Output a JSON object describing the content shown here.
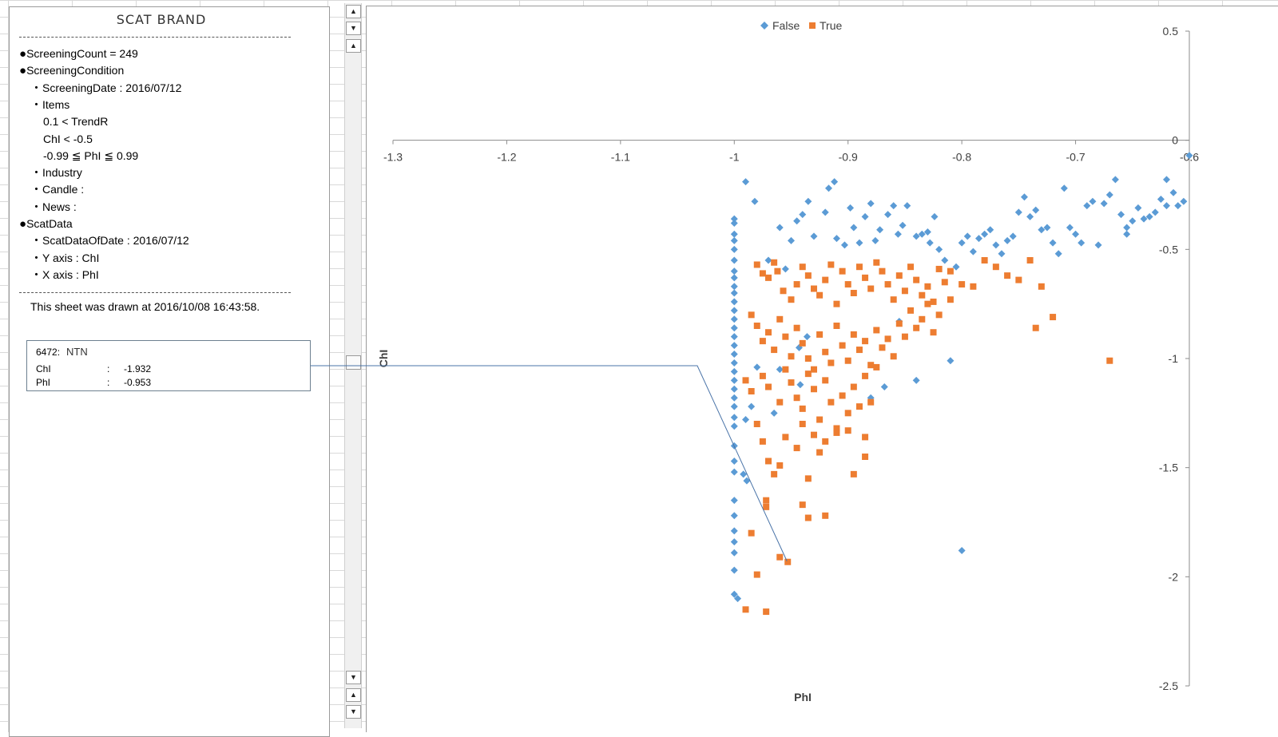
{
  "panel": {
    "title": "SCAT BRAND",
    "lines": [
      {
        "text": "ScreeningCount = 249",
        "bullet": "●"
      },
      {
        "text": "ScreeningCondition",
        "bullet": "●"
      },
      {
        "text": "ScreeningDate : 2016/07/12",
        "bullet": "・"
      },
      {
        "text": "Items",
        "bullet": "・"
      },
      {
        "text": "0.1 < TrendR",
        "bullet": ""
      },
      {
        "text": "ChI < -0.5",
        "bullet": ""
      },
      {
        "text": "-0.99 ≦ PhI ≦ 0.99",
        "bullet": ""
      },
      {
        "text": "Industry",
        "bullet": "・"
      },
      {
        "text": "Candle :",
        "bullet": "・"
      },
      {
        "text": "News :",
        "bullet": "・"
      },
      {
        "text": "ScatData",
        "bullet": "●"
      },
      {
        "text": "ScatDataOfDate : 2016/07/12",
        "bullet": "・"
      },
      {
        "text": "Y axis : ChI",
        "bullet": "・"
      },
      {
        "text": "X axis : PhI",
        "bullet": "・"
      }
    ],
    "drawn_note": "This sheet was drawn at 2016/10/08 16:43:58."
  },
  "tooltip": {
    "code": "6472:",
    "name": "NTN",
    "rows": [
      {
        "label": "ChI",
        "sep": ":",
        "value": "-1.932"
      },
      {
        "label": "PhI",
        "sep": ":",
        "value": "-0.953"
      }
    ]
  },
  "scrollbar": {
    "up_arrow": "▲",
    "down_arrow": "▼"
  },
  "colors": {
    "false_series": "#5b9bd5",
    "true_series": "#ed7d31",
    "axis": "#8c8c8c",
    "leader": "#4a74a8"
  },
  "chart_data": {
    "type": "scatter",
    "xlabel": "PhI",
    "ylabel": "ChI",
    "xlim": [
      -1.3,
      -0.6
    ],
    "ylim": [
      -2.5,
      0.5
    ],
    "x_ticks": [
      -1.3,
      -1.2,
      -1.1,
      -1,
      -0.9,
      -0.8,
      -0.7,
      -0.6
    ],
    "y_ticks": [
      0.5,
      0,
      -0.5,
      -1,
      -1.5,
      -2,
      -2.5
    ],
    "legend": {
      "position": "top-center",
      "entries": [
        "False",
        "True"
      ]
    },
    "highlight": {
      "x": -0.953,
      "y": -1.932
    },
    "series": [
      {
        "name": "False",
        "marker": "diamond",
        "points": [
          [
            -1.0,
            -0.36
          ],
          [
            -1.0,
            -0.38
          ],
          [
            -1.0,
            -0.43
          ],
          [
            -1.0,
            -0.46
          ],
          [
            -1.0,
            -0.5
          ],
          [
            -1.0,
            -0.55
          ],
          [
            -1.0,
            -0.6
          ],
          [
            -1.0,
            -0.63
          ],
          [
            -1.0,
            -0.67
          ],
          [
            -1.0,
            -0.7
          ],
          [
            -1.0,
            -0.74
          ],
          [
            -1.0,
            -0.78
          ],
          [
            -1.0,
            -0.82
          ],
          [
            -1.0,
            -0.86
          ],
          [
            -1.0,
            -0.9
          ],
          [
            -1.0,
            -0.94
          ],
          [
            -1.0,
            -0.98
          ],
          [
            -1.0,
            -1.02
          ],
          [
            -1.0,
            -1.06
          ],
          [
            -1.0,
            -1.1
          ],
          [
            -1.0,
            -1.14
          ],
          [
            -1.0,
            -1.18
          ],
          [
            -1.0,
            -1.22
          ],
          [
            -1.0,
            -1.27
          ],
          [
            -1.0,
            -1.31
          ],
          [
            -1.0,
            -1.4
          ],
          [
            -1.0,
            -1.47
          ],
          [
            -1.0,
            -1.52
          ],
          [
            -1.0,
            -1.65
          ],
          [
            -1.0,
            -1.72
          ],
          [
            -1.0,
            -1.79
          ],
          [
            -1.0,
            -1.84
          ],
          [
            -1.0,
            -1.89
          ],
          [
            -1.0,
            -1.97
          ],
          [
            -1.0,
            -2.08
          ],
          [
            -0.997,
            -2.1
          ],
          [
            -0.992,
            -1.53
          ],
          [
            -0.989,
            -1.56
          ],
          [
            -0.98,
            -1.04
          ],
          [
            -0.985,
            -1.22
          ],
          [
            -0.99,
            -1.28
          ],
          [
            -0.99,
            -0.19
          ],
          [
            -0.982,
            -0.28
          ],
          [
            -0.96,
            -0.4
          ],
          [
            -0.955,
            -0.59
          ],
          [
            -0.95,
            -0.46
          ],
          [
            -0.945,
            -0.37
          ],
          [
            -0.94,
            -0.34
          ],
          [
            -0.935,
            -0.28
          ],
          [
            -0.93,
            -0.44
          ],
          [
            -0.92,
            -0.33
          ],
          [
            -0.917,
            -0.22
          ],
          [
            -0.912,
            -0.19
          ],
          [
            -0.91,
            -0.45
          ],
          [
            -0.903,
            -0.48
          ],
          [
            -0.898,
            -0.31
          ],
          [
            -0.895,
            -0.4
          ],
          [
            -0.89,
            -0.47
          ],
          [
            -0.885,
            -0.35
          ],
          [
            -0.88,
            -0.29
          ],
          [
            -0.876,
            -0.46
          ],
          [
            -0.872,
            -0.41
          ],
          [
            -0.865,
            -0.34
          ],
          [
            -0.86,
            -0.3
          ],
          [
            -0.856,
            -0.43
          ],
          [
            -0.852,
            -0.39
          ],
          [
            -0.848,
            -0.3
          ],
          [
            -0.84,
            -0.44
          ],
          [
            -0.835,
            -0.43
          ],
          [
            -0.83,
            -0.42
          ],
          [
            -0.828,
            -0.47
          ],
          [
            -0.824,
            -0.35
          ],
          [
            -0.82,
            -0.5
          ],
          [
            -0.815,
            -0.55
          ],
          [
            -0.805,
            -0.58
          ],
          [
            -0.8,
            -0.47
          ],
          [
            -0.795,
            -0.44
          ],
          [
            -0.79,
            -0.51
          ],
          [
            -0.785,
            -0.45
          ],
          [
            -0.78,
            -0.43
          ],
          [
            -0.775,
            -0.41
          ],
          [
            -0.77,
            -0.48
          ],
          [
            -0.765,
            -0.52
          ],
          [
            -0.76,
            -0.46
          ],
          [
            -0.755,
            -0.44
          ],
          [
            -0.75,
            -0.33
          ],
          [
            -0.745,
            -0.26
          ],
          [
            -0.74,
            -0.35
          ],
          [
            -0.735,
            -0.32
          ],
          [
            -0.73,
            -0.41
          ],
          [
            -0.725,
            -0.4
          ],
          [
            -0.72,
            -0.47
          ],
          [
            -0.715,
            -0.52
          ],
          [
            -0.71,
            -0.22
          ],
          [
            -0.705,
            -0.4
          ],
          [
            -0.7,
            -0.43
          ],
          [
            -0.695,
            -0.47
          ],
          [
            -0.69,
            -0.3
          ],
          [
            -0.685,
            -0.28
          ],
          [
            -0.68,
            -0.48
          ],
          [
            -0.675,
            -0.29
          ],
          [
            -0.67,
            -0.25
          ],
          [
            -0.665,
            -0.18
          ],
          [
            -0.66,
            -0.34
          ],
          [
            -0.655,
            -0.4
          ],
          [
            -0.65,
            -0.37
          ],
          [
            -0.645,
            -0.31
          ],
          [
            -0.64,
            -0.36
          ],
          [
            -0.635,
            -0.35
          ],
          [
            -0.63,
            -0.33
          ],
          [
            -0.62,
            -0.3
          ],
          [
            -0.614,
            -0.24
          ],
          [
            -0.61,
            -0.3
          ],
          [
            -0.605,
            -0.28
          ],
          [
            -0.6,
            -0.07
          ],
          [
            -0.62,
            -0.18
          ],
          [
            -0.625,
            -0.27
          ],
          [
            -0.655,
            -0.43
          ],
          [
            -0.943,
            -0.95
          ],
          [
            -0.936,
            -0.9
          ],
          [
            -0.96,
            -1.05
          ],
          [
            -0.942,
            -1.12
          ],
          [
            -0.88,
            -1.18
          ],
          [
            -0.868,
            -1.13
          ],
          [
            -0.855,
            -0.83
          ],
          [
            -0.84,
            -1.1
          ],
          [
            -0.81,
            -1.01
          ],
          [
            -0.8,
            -1.88
          ],
          [
            -0.965,
            -1.25
          ],
          [
            -0.97,
            -0.55
          ]
        ]
      },
      {
        "name": "True",
        "marker": "square",
        "points": [
          [
            -0.98,
            -0.57
          ],
          [
            -0.975,
            -0.61
          ],
          [
            -0.97,
            -0.63
          ],
          [
            -0.965,
            -0.56
          ],
          [
            -0.962,
            -0.6
          ],
          [
            -0.957,
            -0.69
          ],
          [
            -0.95,
            -0.73
          ],
          [
            -0.945,
            -0.66
          ],
          [
            -0.94,
            -0.58
          ],
          [
            -0.935,
            -0.62
          ],
          [
            -0.93,
            -0.68
          ],
          [
            -0.925,
            -0.71
          ],
          [
            -0.92,
            -0.64
          ],
          [
            -0.915,
            -0.57
          ],
          [
            -0.91,
            -0.75
          ],
          [
            -0.905,
            -0.6
          ],
          [
            -0.9,
            -0.66
          ],
          [
            -0.895,
            -0.7
          ],
          [
            -0.89,
            -0.58
          ],
          [
            -0.885,
            -0.63
          ],
          [
            -0.88,
            -0.68
          ],
          [
            -0.875,
            -0.56
          ],
          [
            -0.87,
            -0.6
          ],
          [
            -0.865,
            -0.66
          ],
          [
            -0.86,
            -0.73
          ],
          [
            -0.855,
            -0.62
          ],
          [
            -0.85,
            -0.69
          ],
          [
            -0.845,
            -0.58
          ],
          [
            -0.84,
            -0.64
          ],
          [
            -0.835,
            -0.71
          ],
          [
            -0.83,
            -0.67
          ],
          [
            -0.825,
            -0.74
          ],
          [
            -0.82,
            -0.59
          ],
          [
            -0.815,
            -0.65
          ],
          [
            -0.81,
            -0.6
          ],
          [
            -0.8,
            -0.66
          ],
          [
            -0.79,
            -0.67
          ],
          [
            -0.78,
            -0.55
          ],
          [
            -0.77,
            -0.58
          ],
          [
            -0.76,
            -0.62
          ],
          [
            -0.75,
            -0.64
          ],
          [
            -0.74,
            -0.55
          ],
          [
            -0.73,
            -0.67
          ],
          [
            -0.985,
            -0.8
          ],
          [
            -0.98,
            -0.85
          ],
          [
            -0.975,
            -0.92
          ],
          [
            -0.97,
            -0.88
          ],
          [
            -0.965,
            -0.96
          ],
          [
            -0.96,
            -0.82
          ],
          [
            -0.955,
            -0.9
          ],
          [
            -0.95,
            -0.99
          ],
          [
            -0.945,
            -0.86
          ],
          [
            -0.94,
            -0.93
          ],
          [
            -0.935,
            -1.0
          ],
          [
            -0.93,
            -1.05
          ],
          [
            -0.925,
            -0.89
          ],
          [
            -0.92,
            -0.97
          ],
          [
            -0.915,
            -1.02
          ],
          [
            -0.91,
            -0.85
          ],
          [
            -0.905,
            -0.94
          ],
          [
            -0.9,
            -1.01
          ],
          [
            -0.895,
            -0.89
          ],
          [
            -0.89,
            -0.96
          ],
          [
            -0.885,
            -0.92
          ],
          [
            -0.88,
            -1.03
          ],
          [
            -0.875,
            -0.87
          ],
          [
            -0.87,
            -0.95
          ],
          [
            -0.865,
            -0.91
          ],
          [
            -0.86,
            -0.99
          ],
          [
            -0.855,
            -0.84
          ],
          [
            -0.85,
            -0.9
          ],
          [
            -0.845,
            -0.78
          ],
          [
            -0.84,
            -0.86
          ],
          [
            -0.835,
            -0.82
          ],
          [
            -0.83,
            -0.75
          ],
          [
            -0.825,
            -0.88
          ],
          [
            -0.82,
            -0.8
          ],
          [
            -0.81,
            -0.73
          ],
          [
            -0.735,
            -0.86
          ],
          [
            -0.72,
            -0.81
          ],
          [
            -0.67,
            -1.01
          ],
          [
            -0.99,
            -1.1
          ],
          [
            -0.985,
            -1.15
          ],
          [
            -0.975,
            -1.08
          ],
          [
            -0.97,
            -1.13
          ],
          [
            -0.96,
            -1.2
          ],
          [
            -0.955,
            -1.05
          ],
          [
            -0.95,
            -1.11
          ],
          [
            -0.945,
            -1.18
          ],
          [
            -0.94,
            -1.23
          ],
          [
            -0.935,
            -1.07
          ],
          [
            -0.93,
            -1.14
          ],
          [
            -0.925,
            -1.28
          ],
          [
            -0.92,
            -1.1
          ],
          [
            -0.915,
            -1.2
          ],
          [
            -0.91,
            -1.32
          ],
          [
            -0.905,
            -1.17
          ],
          [
            -0.9,
            -1.25
          ],
          [
            -0.895,
            -1.13
          ],
          [
            -0.89,
            -1.22
          ],
          [
            -0.885,
            -1.08
          ],
          [
            -0.88,
            -1.2
          ],
          [
            -0.875,
            -1.04
          ],
          [
            -0.98,
            -1.3
          ],
          [
            -0.975,
            -1.38
          ],
          [
            -0.97,
            -1.47
          ],
          [
            -0.965,
            -1.53
          ],
          [
            -0.96,
            -1.49
          ],
          [
            -0.955,
            -1.36
          ],
          [
            -0.945,
            -1.41
          ],
          [
            -0.94,
            -1.3
          ],
          [
            -0.935,
            -1.55
          ],
          [
            -0.93,
            -1.35
          ],
          [
            -0.925,
            -1.43
          ],
          [
            -0.92,
            -1.38
          ],
          [
            -0.91,
            -1.34
          ],
          [
            -0.9,
            -1.33
          ],
          [
            -0.895,
            -1.53
          ],
          [
            -0.885,
            -1.45
          ],
          [
            -0.885,
            -1.36
          ],
          [
            -0.972,
            -1.65
          ],
          [
            -0.972,
            -1.68
          ],
          [
            -0.94,
            -1.67
          ],
          [
            -0.935,
            -1.73
          ],
          [
            -0.92,
            -1.72
          ],
          [
            -0.985,
            -1.8
          ],
          [
            -0.96,
            -1.91
          ],
          [
            -0.953,
            -1.932
          ],
          [
            -0.98,
            -1.99
          ],
          [
            -0.99,
            -2.15
          ],
          [
            -0.972,
            -2.16
          ]
        ]
      }
    ]
  }
}
